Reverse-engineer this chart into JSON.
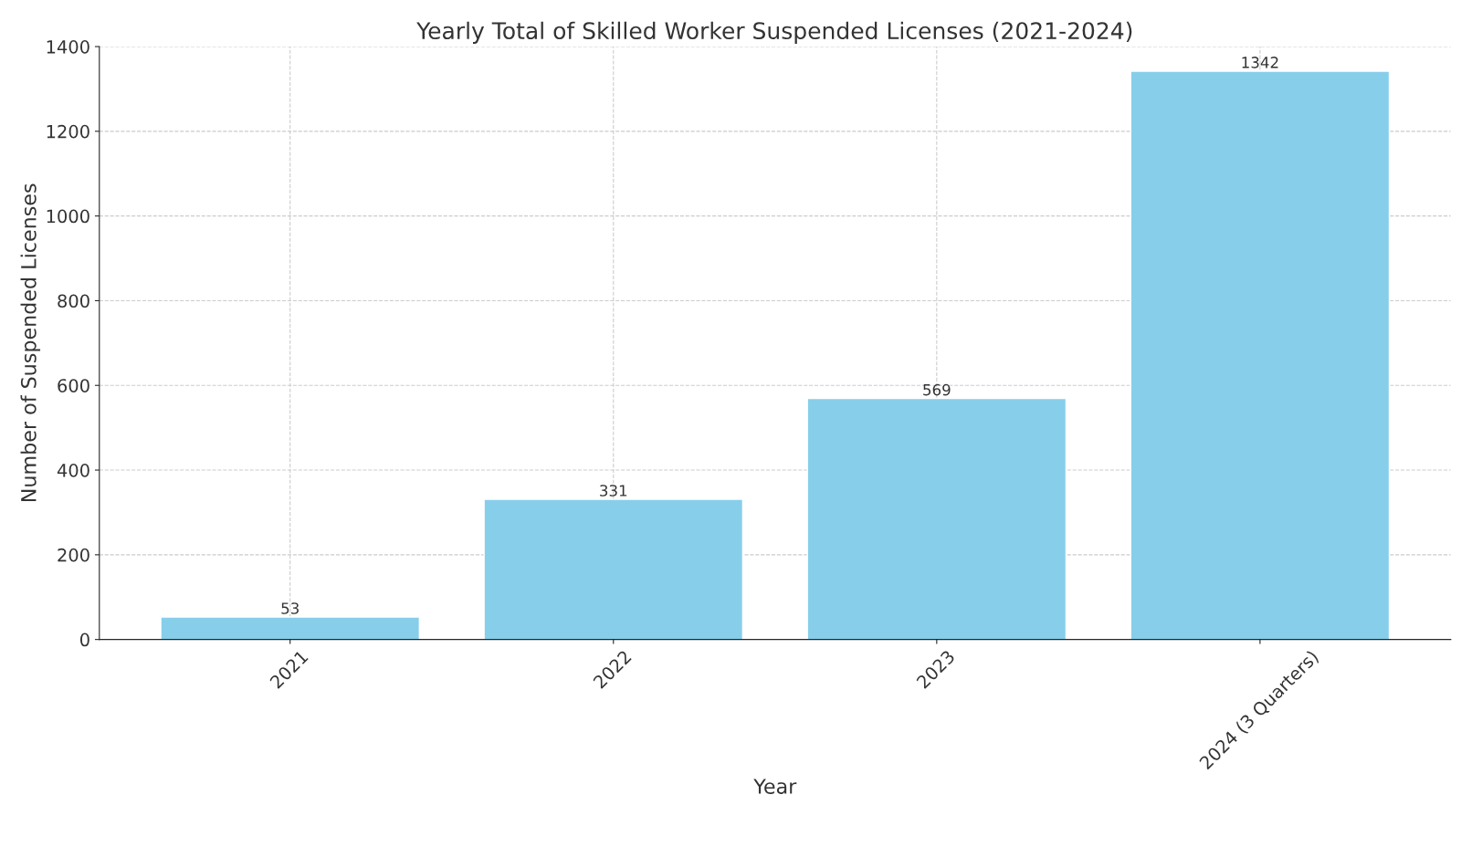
{
  "chart_data": {
    "type": "bar",
    "title": "Yearly Total of Skilled Worker Suspended Licenses (2021-2024)",
    "xlabel": "Year",
    "ylabel": "Number of Suspended Licenses",
    "categories": [
      "2021",
      "2022",
      "2023",
      "2024 (3 Quarters)"
    ],
    "values": [
      53,
      331,
      569,
      1342
    ],
    "color": "#87ceeb",
    "ylim": [
      0,
      1400
    ],
    "yticks": [
      0,
      200,
      400,
      600,
      800,
      1000,
      1200,
      1400
    ],
    "grid": true,
    "data_labels": true
  }
}
